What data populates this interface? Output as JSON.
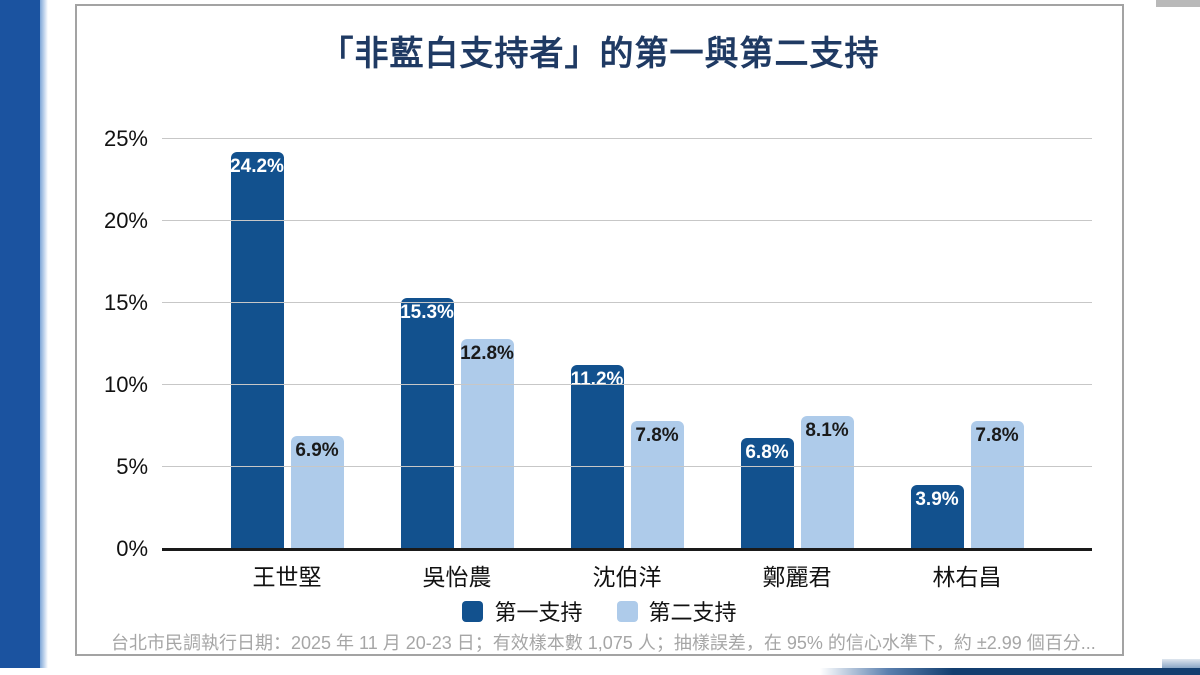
{
  "title": "「非藍白支持者」的第一與第二支持",
  "chart_data": {
    "type": "bar",
    "categories": [
      "王世堅",
      "吳怡農",
      "沈伯洋",
      "鄭麗君",
      "林右昌"
    ],
    "series": [
      {
        "name": "第一支持",
        "color": "#12518e",
        "label_color": "#ffffff",
        "values": [
          24.2,
          15.3,
          11.2,
          6.8,
          3.9
        ]
      },
      {
        "name": "第二支持",
        "color": "#aecbea",
        "label_color": "#1a1a1a",
        "values": [
          6.9,
          12.8,
          7.8,
          8.1,
          7.8
        ]
      }
    ],
    "value_suffix": "%",
    "ylim": [
      0,
      25
    ],
    "yticks": [
      "0%",
      "5%",
      "10%",
      "15%",
      "20%",
      "25%"
    ],
    "grid": true,
    "legend_position": "bottom",
    "title": "「非藍白支持者」的第一與第二支持"
  },
  "footer": "台北市民調執行日期：2025 年 11 月 20-23 日；有效樣本數 1,075 人；抽樣誤差，在 95% 的信心水準下，約 ±2.99 個百分...",
  "colors": {
    "title": "#1f3a63",
    "first_support": "#12518e",
    "second_support": "#aecbea",
    "grid": "#c7c7c7",
    "footnote": "#a6a6a6"
  }
}
